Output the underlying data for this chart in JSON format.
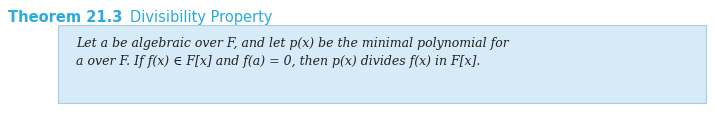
{
  "title_bold": "Theorem 21.3",
  "title_regular": "    Divisibility Property",
  "title_color": "#29ABE2",
  "title_bold_fontsize": 10.5,
  "title_regular_fontsize": 10.5,
  "box_facecolor": "#D6EAF8",
  "box_edgecolor": "#A9CCE3",
  "body_line1": "Let a be algebraic over F, and let p(x) be the minimal polynomial for",
  "body_line2": "a over F. If f(x) ∈ F[x] and f(a) = 0, then p(x) divides f(x) in F[x].",
  "body_color": "#222222",
  "body_fontsize": 9.0,
  "bg_color": "#FFFFFF",
  "fig_width": 7.14,
  "fig_height": 1.18,
  "dpi": 100
}
